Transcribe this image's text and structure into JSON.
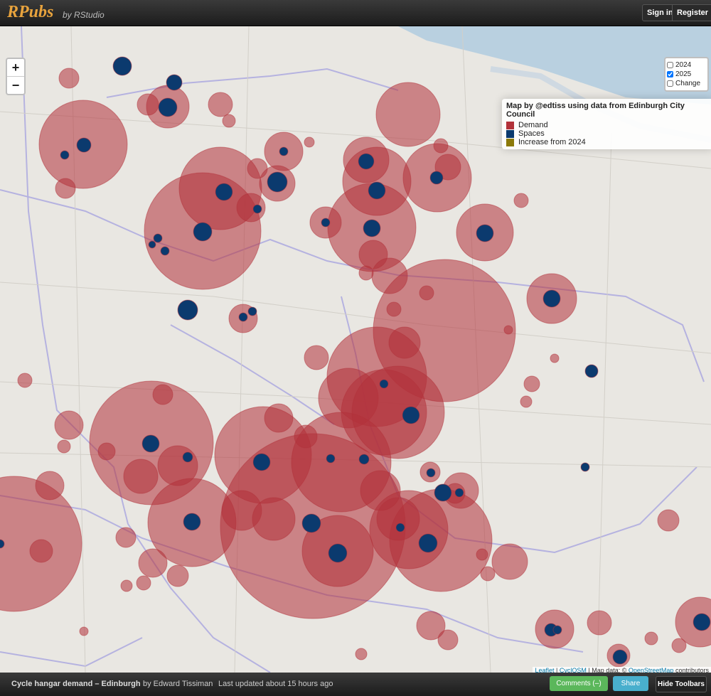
{
  "header": {
    "brand": "RPubs",
    "byline": "by RStudio",
    "sign_in": "Sign in",
    "register": "Register"
  },
  "map": {
    "zoom_in": "+",
    "zoom_out": "−",
    "layers": [
      {
        "label": "2024",
        "checked": false
      },
      {
        "label": "2025",
        "checked": true
      },
      {
        "label": "Change",
        "checked": false
      }
    ],
    "legend": {
      "title": "Map by @edtiss using data from Edinburgh City Council",
      "items": [
        {
          "label": "Demand",
          "color": "#b2323a"
        },
        {
          "label": "Spaces",
          "color": "#0b3a6e"
        },
        {
          "label": "Increase from 2024",
          "color": "#8c7a0a"
        }
      ]
    },
    "attribution": {
      "leaflet": "Leaflet",
      "sep1": "|",
      "cyclosm": "CyclOSM",
      "sep2": "| Map data: ©",
      "osm": "OpenStreetMap",
      "contributors": "contributors"
    }
  },
  "footer": {
    "title": "Cycle hangar demand – Edinburgh",
    "author": "by Edward Tissiman",
    "updated": "Last updated about 15 hours ago",
    "comments": "Comments (–)",
    "share": "Share",
    "hide": "Hide Toolbars"
  }
}
